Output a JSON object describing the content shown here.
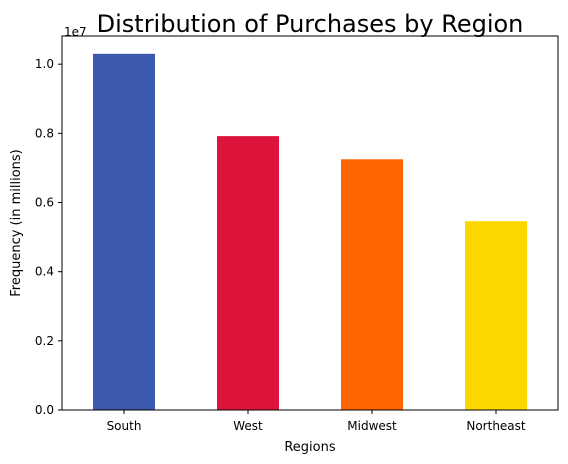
{
  "chart_data": {
    "type": "bar",
    "title": "Distribution of Purchases by Region",
    "xlabel": "Regions",
    "ylabel": "Frequency (in millions)",
    "categories": [
      "South",
      "West",
      "Midwest",
      "Northeast"
    ],
    "values": [
      10300000,
      7920000,
      7250000,
      5460000
    ],
    "colors": [
      "#3c5aad",
      "#dc143c",
      "#ff6400",
      "#ffd700"
    ],
    "yticks": [
      "0.0",
      "0.2",
      "0.4",
      "0.6",
      "0.8",
      "1.0"
    ],
    "ytick_values": [
      0,
      2000000,
      4000000,
      6000000,
      8000000,
      10000000
    ],
    "y_offset_label": "1e7",
    "ylim": [
      0,
      10815000
    ],
    "grid": false,
    "legend": "none"
  }
}
